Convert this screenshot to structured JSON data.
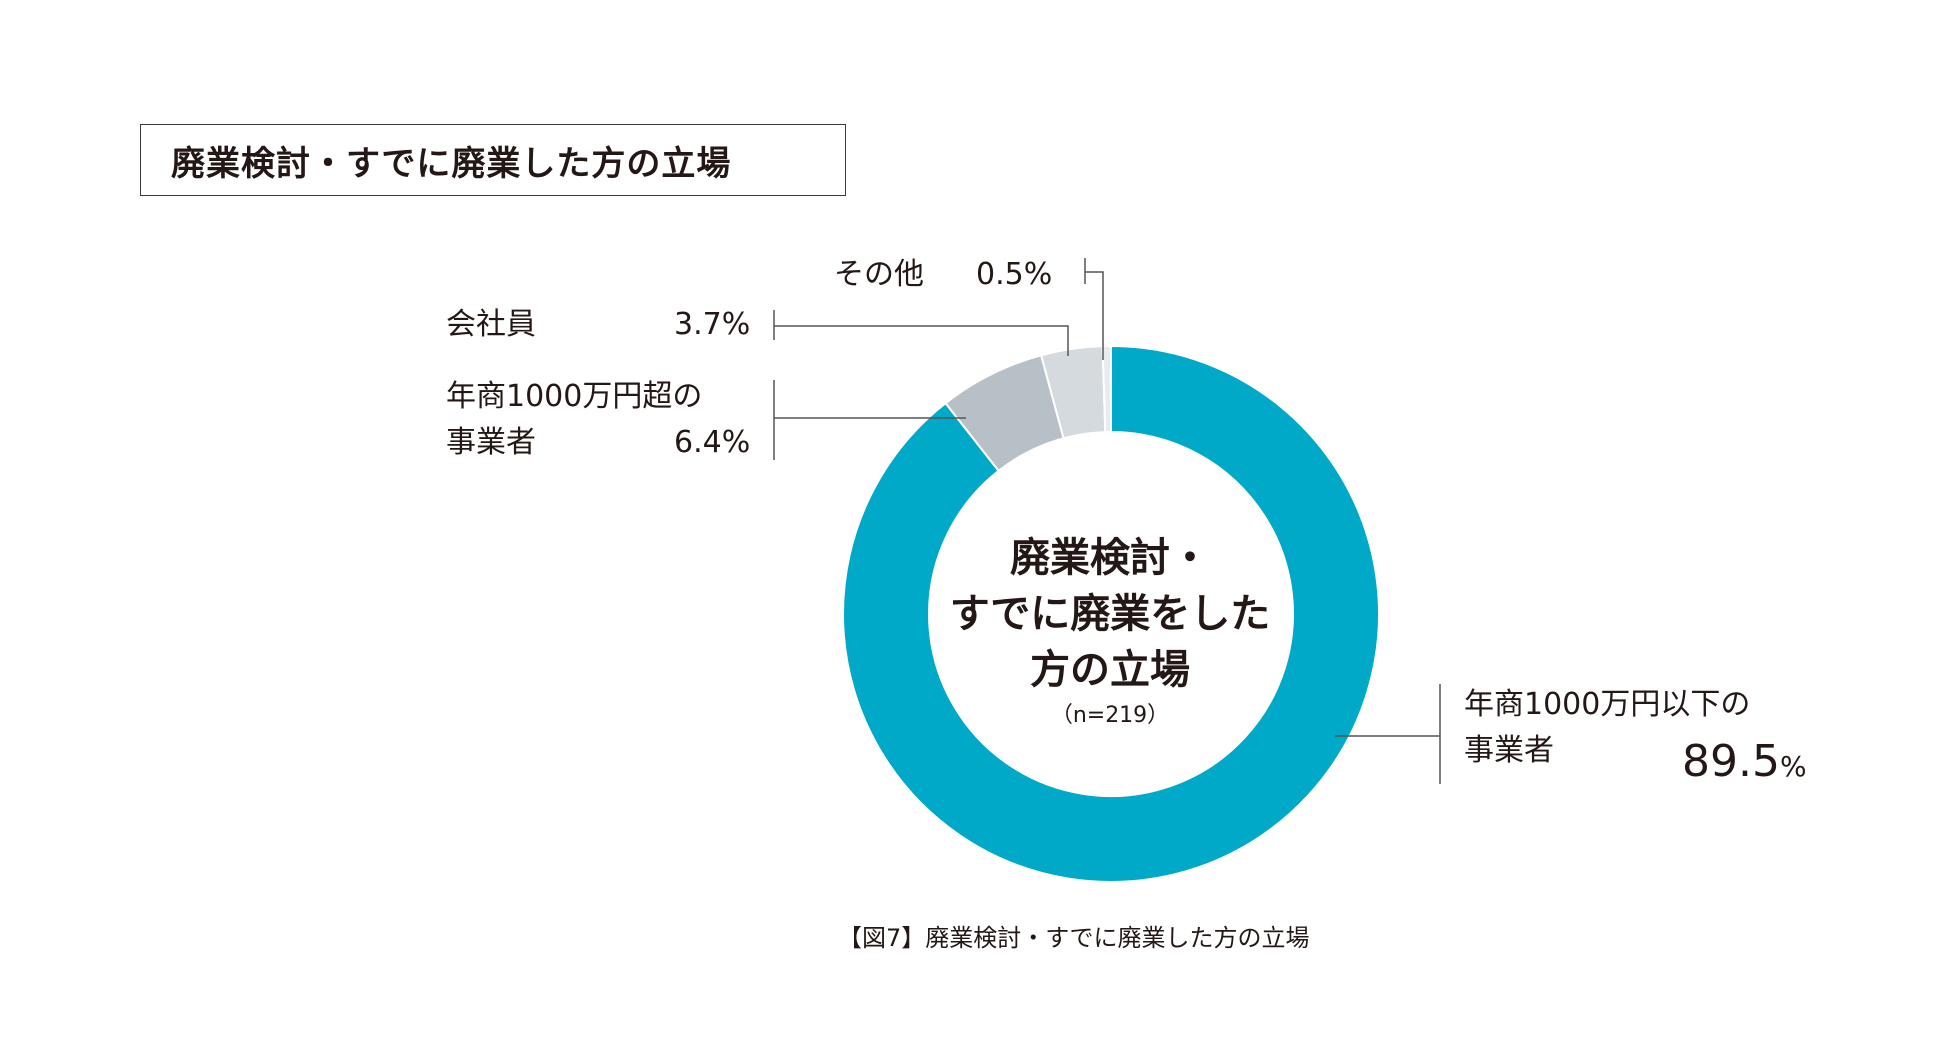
{
  "title": "廃業検討・すでに廃業した方の立場",
  "center": {
    "line1": "廃業検討・",
    "line2": "すでに廃業をした",
    "line3": "方の立場",
    "n": "（n=219）"
  },
  "caption": "【図7】廃業検討・すでに廃業した方の立場",
  "labels": {
    "large_biz_1": "年商1000万円以下の",
    "large_biz_2": "事業者",
    "large_pct_num": "89.5",
    "large_pct_unit": "%",
    "mid_biz_1": "年商1000万円超の",
    "mid_biz_2": "事業者",
    "mid_pct": "6.4%",
    "employee": "会社員",
    "employee_pct": "3.7%",
    "other": "その他",
    "other_pct": "0.5%"
  },
  "chart_data": {
    "type": "pie",
    "style": "donut",
    "title": "廃業検討・すでに廃業した方の立場",
    "n": 219,
    "series": [
      {
        "label": "年商1000万円以下の事業者",
        "value": 89.5,
        "color": "#00a9c8"
      },
      {
        "label": "年商1000万円超の事業者",
        "value": 6.4,
        "color": "#b8c0c7"
      },
      {
        "label": "会社員",
        "value": 3.7,
        "color": "#d4dade"
      },
      {
        "label": "その他",
        "value": 0.5,
        "color": "#e8ecee"
      }
    ]
  }
}
